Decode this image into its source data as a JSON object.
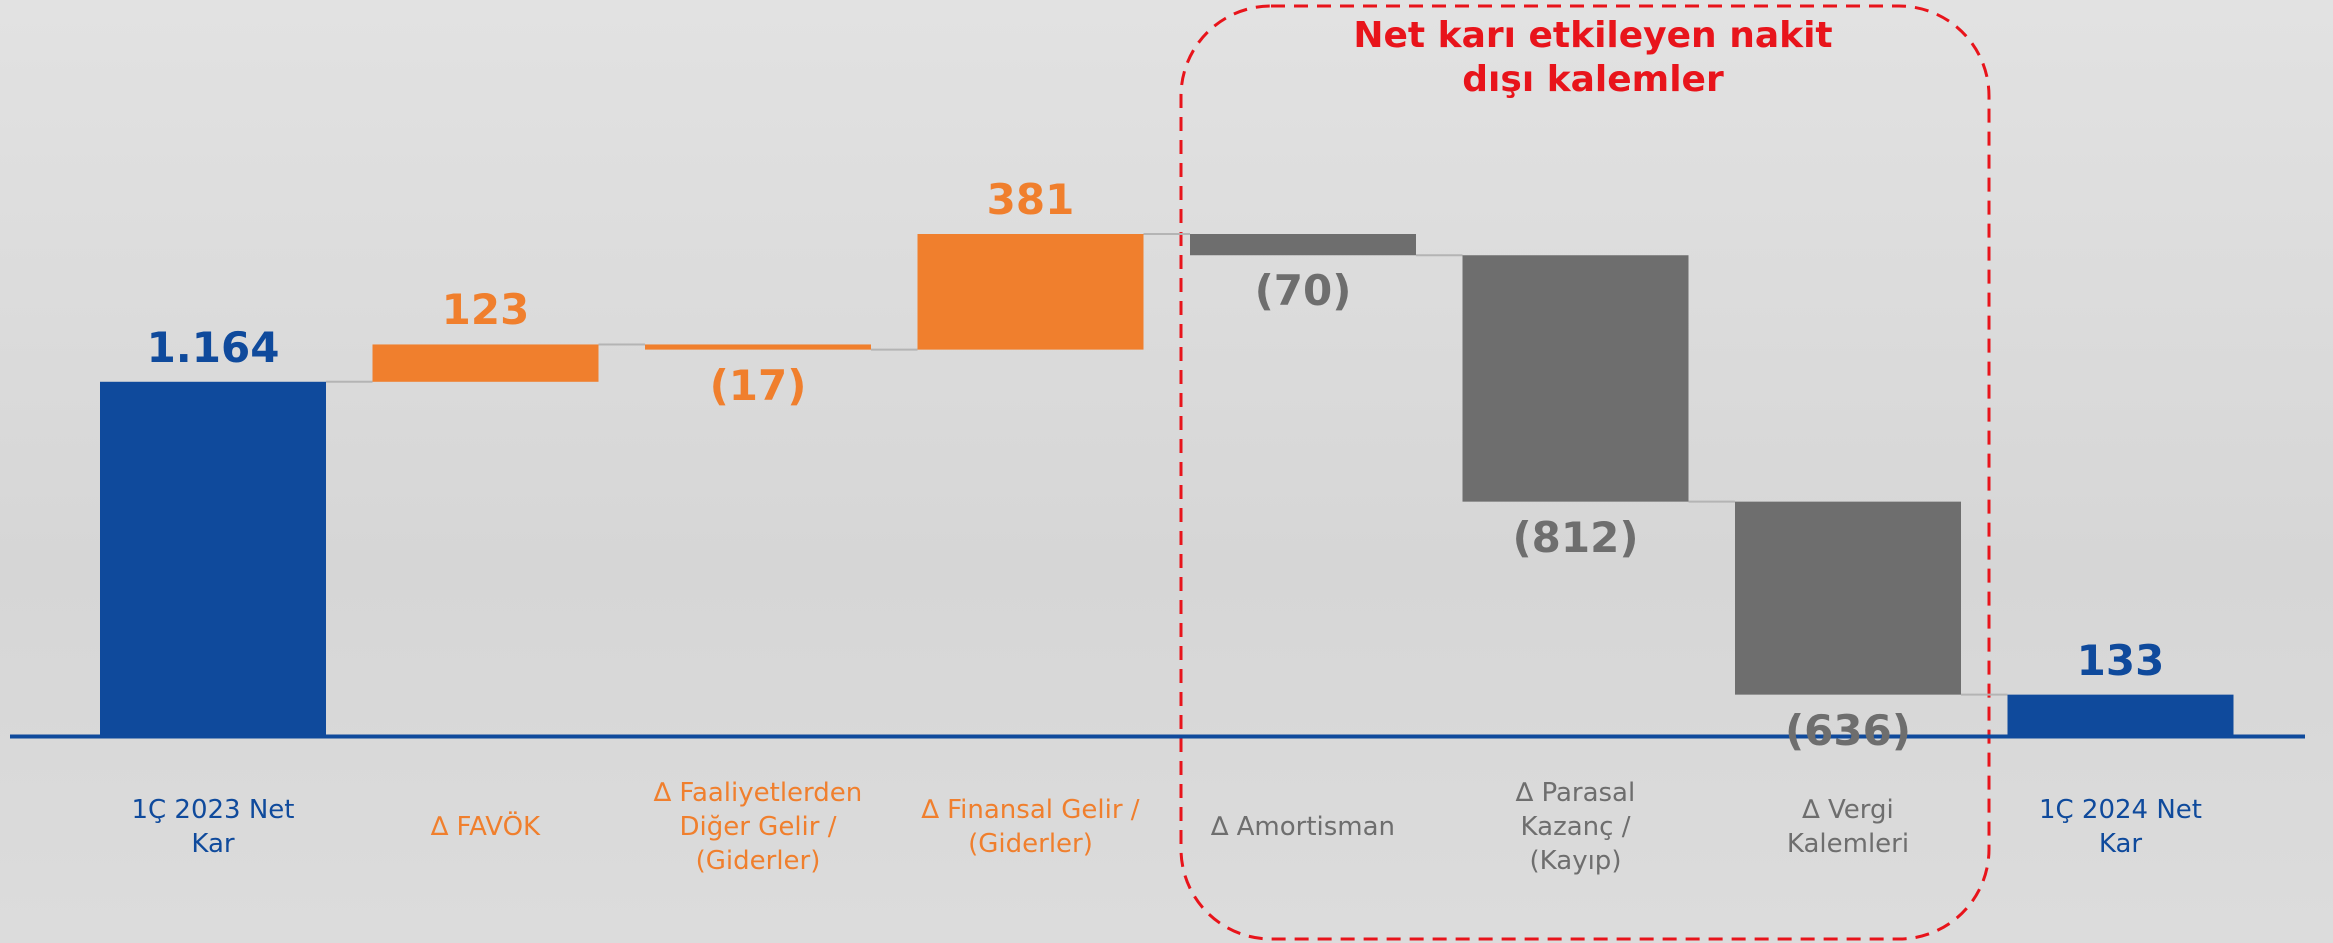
{
  "chart_data": {
    "type": "waterfall",
    "annotation": "Net karı etkileyen nakit dışı kalemler",
    "annotation_color": "#e8141b",
    "categories": [
      "1Ç 2023 Net\nKar",
      "∆ FAVÖK",
      "∆ Faaliyetlerden\nDiğer Gelir /\n(Giderler)",
      "∆ Finansal Gelir /\n(Giderler)",
      "∆ Amortisman",
      "∆ Parasal\nKazanç /\n(Kayıp)",
      "∆ Vergi\nKalemleri",
      "1Ç 2024 Net\nKar"
    ],
    "values": [
      1164,
      123,
      -17,
      381,
      -70,
      -812,
      -636,
      133
    ],
    "value_labels": [
      "1.164",
      "123",
      "(17)",
      "381",
      "(70)",
      "(812)",
      "(636)",
      "133"
    ],
    "colors": [
      "#0f4a9c",
      "#f07f2d",
      "#f07f2d",
      "#f07f2d",
      "#6e6e6e",
      "#6e6e6e",
      "#6e6e6e",
      "#0f4a9c"
    ]
  }
}
